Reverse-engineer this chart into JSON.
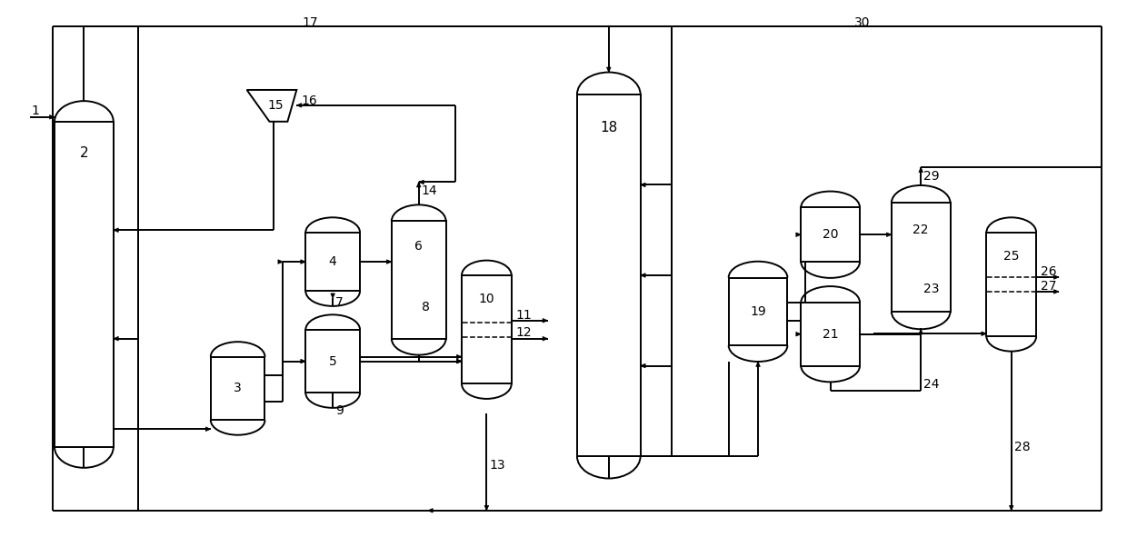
{
  "bg_color": "#ffffff",
  "lw": 1.4,
  "fig_width": 12.4,
  "fig_height": 6.13,
  "dpi": 100,
  "xlim": [
    0,
    124
  ],
  "ylim": [
    0,
    61.3
  ]
}
